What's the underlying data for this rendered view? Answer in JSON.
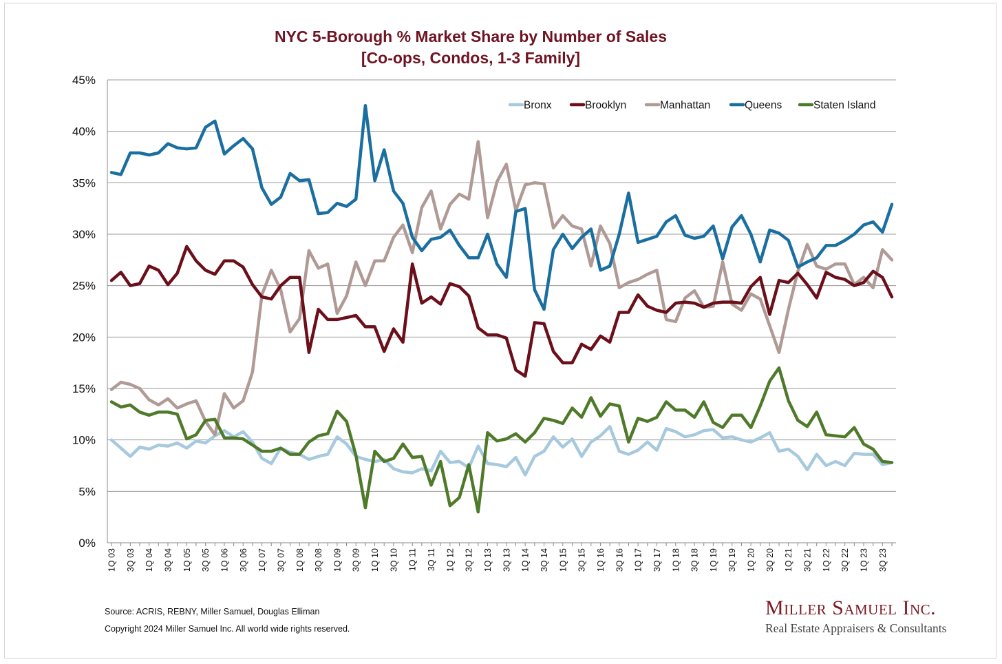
{
  "chart_data": {
    "type": "line",
    "title": "NYC 5-Borough % Market Share by Number of Sales",
    "subtitle": "[Co-ops, Condos, 1-3 Family]",
    "xlabel": "",
    "ylabel": "",
    "ylim": [
      0,
      45
    ],
    "yticks": [
      0,
      5,
      10,
      15,
      20,
      25,
      30,
      35,
      40,
      45
    ],
    "ytick_labels": [
      "0%",
      "5%",
      "10%",
      "15%",
      "20%",
      "25%",
      "30%",
      "35%",
      "40%",
      "45%"
    ],
    "grid": "horizontal",
    "legend_position": "top-right",
    "x": [
      "1Q 03",
      "2Q 03",
      "3Q 03",
      "4Q 03",
      "1Q 04",
      "2Q 04",
      "3Q 04",
      "4Q 04",
      "1Q 05",
      "2Q 05",
      "3Q 05",
      "4Q 05",
      "1Q 06",
      "2Q 06",
      "3Q 06",
      "4Q 06",
      "1Q 07",
      "2Q 07",
      "3Q 07",
      "4Q 07",
      "1Q 08",
      "2Q 08",
      "3Q 08",
      "4Q 08",
      "1Q 09",
      "2Q 09",
      "3Q 09",
      "4Q 09",
      "1Q 10",
      "2Q 10",
      "3Q 10",
      "4Q 10",
      "1Q 11",
      "2Q 11",
      "3Q 11",
      "4Q 11",
      "1Q 12",
      "2Q 12",
      "3Q 12",
      "4Q 12",
      "1Q 13",
      "2Q 13",
      "3Q 13",
      "4Q 13",
      "1Q 14",
      "2Q 14",
      "3Q 14",
      "4Q 14",
      "1Q 15",
      "2Q 15",
      "3Q 15",
      "4Q 15",
      "1Q 16",
      "2Q 16",
      "3Q 16",
      "4Q 16",
      "1Q 17",
      "2Q 17",
      "3Q 17",
      "4Q 17",
      "1Q 18",
      "2Q 18",
      "3Q 18",
      "4Q 18",
      "1Q 19",
      "2Q 19",
      "3Q 19",
      "4Q 19",
      "1Q 20",
      "2Q 20",
      "3Q 20",
      "4Q 20",
      "1Q 21",
      "2Q 21",
      "3Q 21",
      "4Q 21",
      "1Q 22",
      "2Q 22",
      "3Q 22",
      "4Q 22",
      "1Q 23",
      "2Q 23",
      "3Q 23",
      "4Q 23"
    ],
    "x_tick_labels": [
      "1Q 03",
      "3Q 03",
      "1Q 04",
      "3Q 04",
      "1Q 05",
      "3Q 05",
      "1Q 06",
      "3Q 06",
      "1Q 07",
      "3Q 07",
      "1Q 08",
      "3Q 08",
      "1Q 09",
      "3Q 09",
      "1Q 10",
      "3Q 10",
      "1Q 11",
      "3Q 11",
      "1Q 12",
      "3Q 12",
      "1Q 13",
      "3Q 13",
      "1Q 14",
      "3Q 14",
      "1Q 15",
      "3Q 15",
      "1Q 16",
      "3Q 16",
      "1Q 17",
      "3Q 17",
      "1Q 18",
      "3Q 18",
      "1Q 19",
      "3Q 19",
      "1Q 20",
      "3Q 20",
      "1Q 21",
      "3Q 21",
      "1Q 22",
      "3Q 22",
      "1Q 23",
      "3Q 23"
    ],
    "series": [
      {
        "name": "Bronx",
        "color": "#a6c9dd",
        "values": [
          10.0,
          9.2,
          8.4,
          9.3,
          9.1,
          9.5,
          9.4,
          9.7,
          9.2,
          9.9,
          9.7,
          10.4,
          10.9,
          10.3,
          10.8,
          9.8,
          8.2,
          7.7,
          9.2,
          8.8,
          8.6,
          8.1,
          8.4,
          8.6,
          10.3,
          9.6,
          8.4,
          8.1,
          7.9,
          8.1,
          7.2,
          6.9,
          6.8,
          7.2,
          7.0,
          8.9,
          7.8,
          7.9,
          7.3,
          9.4,
          7.7,
          7.6,
          7.4,
          8.3,
          6.6,
          8.4,
          8.9,
          10.3,
          9.3,
          10.1,
          8.4,
          9.8,
          10.4,
          11.3,
          8.9,
          8.6,
          9.0,
          9.8,
          9.0,
          11.1,
          10.8,
          10.3,
          10.5,
          10.9,
          11.0,
          10.2,
          10.3,
          10.0,
          9.8,
          10.2,
          10.7,
          8.9,
          9.1,
          8.4,
          7.1,
          8.6,
          7.5,
          7.9,
          7.5,
          8.7,
          8.6,
          8.6,
          7.6,
          7.8
        ]
      },
      {
        "name": "Brooklyn",
        "color": "#6b0f1a",
        "values": [
          25.5,
          26.3,
          25.0,
          25.2,
          26.9,
          26.5,
          25.1,
          26.2,
          28.8,
          27.4,
          26.5,
          26.1,
          27.4,
          27.4,
          26.8,
          25.1,
          23.9,
          23.7,
          25.0,
          25.8,
          25.8,
          18.5,
          22.7,
          21.7,
          21.7,
          21.9,
          22.1,
          21.0,
          21.0,
          18.6,
          20.8,
          19.5,
          27.1,
          23.3,
          23.9,
          23.2,
          25.2,
          24.9,
          24.0,
          20.9,
          20.2,
          20.2,
          19.9,
          16.8,
          16.2,
          21.4,
          21.3,
          18.6,
          17.5,
          17.5,
          19.3,
          18.8,
          20.1,
          19.5,
          22.4,
          22.4,
          24.1,
          23.0,
          22.6,
          22.4,
          23.3,
          23.4,
          23.3,
          22.9,
          23.3,
          23.4,
          23.4,
          23.3,
          24.9,
          25.8,
          22.2,
          25.5,
          25.3,
          26.2,
          25.1,
          23.8,
          26.3,
          25.8,
          25.6,
          25.0,
          25.3,
          26.4,
          25.8,
          23.9
        ]
      },
      {
        "name": "Manhattan",
        "color": "#b09a95",
        "values": [
          14.9,
          15.6,
          15.4,
          15.0,
          13.9,
          13.4,
          14.0,
          13.1,
          13.5,
          13.8,
          11.8,
          10.5,
          14.5,
          13.1,
          13.8,
          16.6,
          24.1,
          26.5,
          24.6,
          20.5,
          21.8,
          28.4,
          26.7,
          27.1,
          22.3,
          24.0,
          27.3,
          25.0,
          27.4,
          27.4,
          29.7,
          30.9,
          28.2,
          32.6,
          34.2,
          30.5,
          32.9,
          33.9,
          33.4,
          39.0,
          31.6,
          35.1,
          36.8,
          32.3,
          34.8,
          35.0,
          34.9,
          30.6,
          31.8,
          30.8,
          30.5,
          26.9,
          30.8,
          29.1,
          24.8,
          25.3,
          25.6,
          26.1,
          26.5,
          21.7,
          21.5,
          23.8,
          24.5,
          22.9,
          23.0,
          27.3,
          23.2,
          22.6,
          24.2,
          23.7,
          21.1,
          18.5,
          22.7,
          26.4,
          29.0,
          26.9,
          26.6,
          27.1,
          27.1,
          25.1,
          25.8,
          24.8,
          28.5,
          27.5
        ]
      },
      {
        "name": "Queens",
        "color": "#1a6fa0",
        "values": [
          36.0,
          35.8,
          37.9,
          37.9,
          37.7,
          37.9,
          38.8,
          38.4,
          38.3,
          38.4,
          40.4,
          41.0,
          37.8,
          38.6,
          39.3,
          38.3,
          34.5,
          32.9,
          33.6,
          35.9,
          35.2,
          35.3,
          32.0,
          32.1,
          33.0,
          32.7,
          33.4,
          42.5,
          35.2,
          38.2,
          34.2,
          33.0,
          29.7,
          28.4,
          29.5,
          29.7,
          30.4,
          28.9,
          27.7,
          27.7,
          30.0,
          27.1,
          25.8,
          32.2,
          32.5,
          24.6,
          22.7,
          28.5,
          30.0,
          28.6,
          29.7,
          30.5,
          26.5,
          26.9,
          30.0,
          34.0,
          29.2,
          29.5,
          29.8,
          31.2,
          31.8,
          29.9,
          29.6,
          29.8,
          30.8,
          27.6,
          30.7,
          31.8,
          30.0,
          27.3,
          30.4,
          30.1,
          29.4,
          26.8,
          27.3,
          27.7,
          28.9,
          28.9,
          29.4,
          30.0,
          30.9,
          31.2,
          30.2,
          32.9
        ]
      },
      {
        "name": "Staten Island",
        "color": "#4f7a2a",
        "values": [
          13.7,
          13.2,
          13.4,
          12.7,
          12.4,
          12.7,
          12.7,
          12.5,
          10.1,
          10.5,
          11.9,
          12.0,
          10.2,
          10.2,
          10.1,
          9.5,
          8.9,
          8.9,
          9.2,
          8.6,
          8.6,
          9.8,
          10.4,
          10.6,
          12.8,
          11.8,
          8.5,
          3.4,
          8.9,
          7.9,
          8.2,
          9.6,
          8.3,
          8.4,
          5.6,
          7.9,
          3.6,
          4.4,
          7.6,
          3.0,
          10.7,
          9.9,
          10.1,
          10.6,
          9.8,
          10.7,
          12.1,
          11.9,
          11.6,
          13.1,
          12.2,
          14.1,
          12.3,
          13.5,
          13.3,
          9.8,
          12.1,
          11.8,
          12.2,
          13.7,
          12.9,
          12.9,
          12.2,
          13.7,
          11.7,
          11.2,
          12.4,
          12.4,
          11.2,
          13.3,
          15.7,
          17.0,
          13.8,
          11.9,
          11.3,
          12.7,
          10.5,
          10.4,
          10.3,
          11.2,
          9.6,
          9.1,
          7.9,
          7.8
        ]
      }
    ]
  },
  "footer": {
    "source": "Source: ACRIS, REBNY, Miller Samuel, Douglas Elliman",
    "copyright": "Copyright 2024 Miller Samuel Inc.  All world wide rights reserved."
  },
  "logo": {
    "name": "Miller Samuel Inc.",
    "tagline": "Real Estate Appraisers & Consultants"
  }
}
